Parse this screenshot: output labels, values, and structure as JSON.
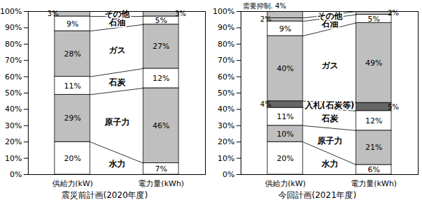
{
  "chart_data": [
    {
      "type": "bar",
      "title": "震災前計画(2020年度)",
      "stacked": true,
      "data_labels": true,
      "categories": [
        "供給力(kW)",
        "電力量(kWh)"
      ],
      "ylim": [
        0,
        100
      ],
      "yticks": [
        {
          "value": 0,
          "label": "0%"
        },
        {
          "value": 10,
          "label": "10%"
        },
        {
          "value": 20,
          "label": "20%"
        },
        {
          "value": 30,
          "label": "30%"
        },
        {
          "value": 40,
          "label": "40%"
        },
        {
          "value": 50,
          "label": "50%"
        },
        {
          "value": 60,
          "label": "60%"
        },
        {
          "value": 70,
          "label": "70%"
        },
        {
          "value": 80,
          "label": "80%"
        },
        {
          "value": 90,
          "label": "90%"
        },
        {
          "value": 100,
          "label": "100%"
        }
      ],
      "series": [
        {
          "name": "水力",
          "color": "#ffffff",
          "values": [
            20,
            7
          ],
          "value_labels": [
            "20%",
            "7%"
          ]
        },
        {
          "name": "原子力",
          "color": "#bfbfbf",
          "values": [
            29,
            46
          ],
          "value_labels": [
            "29%",
            "46%"
          ]
        },
        {
          "name": "石炭",
          "color": "#ffffff",
          "values": [
            11,
            12
          ],
          "value_labels": [
            "11%",
            "12%"
          ]
        },
        {
          "name": "ガス",
          "color": "#bfbfbf",
          "values": [
            28,
            27
          ],
          "value_labels": [
            "28%",
            "27%"
          ]
        },
        {
          "name": "石油",
          "color": "#ffffff",
          "values": [
            9,
            5
          ],
          "value_labels": [
            "9%",
            "5%"
          ]
        },
        {
          "name": "その他",
          "color": "#bfbfbf",
          "values": [
            3,
            3
          ],
          "value_labels": [
            "3%",
            "3%"
          ]
        }
      ]
    },
    {
      "type": "bar",
      "title": "今回計画(2021年度)",
      "stacked": true,
      "data_labels": true,
      "categories": [
        "供給力(kW)",
        "電力量(kWh)"
      ],
      "ylim": [
        0,
        100
      ],
      "yticks": [
        {
          "value": 0,
          "label": "0%"
        },
        {
          "value": 10,
          "label": "10%"
        },
        {
          "value": 20,
          "label": "20%"
        },
        {
          "value": 30,
          "label": "30%"
        },
        {
          "value": 40,
          "label": "40%"
        },
        {
          "value": 50,
          "label": "50%"
        },
        {
          "value": 60,
          "label": "60%"
        },
        {
          "value": 70,
          "label": "70%"
        },
        {
          "value": 80,
          "label": "80%"
        },
        {
          "value": 90,
          "label": "90%"
        },
        {
          "value": 100,
          "label": "100%"
        }
      ],
      "series": [
        {
          "name": "水力",
          "color": "#ffffff",
          "values": [
            20,
            6
          ],
          "value_labels": [
            "20%",
            "6%"
          ]
        },
        {
          "name": "原子力",
          "color": "#bfbfbf",
          "values": [
            10,
            21
          ],
          "value_labels": [
            "10%",
            "21%"
          ]
        },
        {
          "name": "石炭",
          "color": "#ffffff",
          "values": [
            11,
            12
          ],
          "value_labels": [
            "11%",
            "12%"
          ]
        },
        {
          "name": "入札(石炭等)",
          "color": "#666666",
          "values": [
            4,
            5
          ],
          "value_labels": [
            "4%",
            "5%"
          ]
        },
        {
          "name": "ガス",
          "color": "#bfbfbf",
          "values": [
            40,
            49
          ],
          "value_labels": [
            "40%",
            "49%"
          ]
        },
        {
          "name": "石油",
          "color": "#ffffff",
          "values": [
            9,
            5
          ],
          "value_labels": [
            "9%",
            "5%"
          ]
        },
        {
          "name": "その他",
          "color": "#bfbfbf",
          "values": [
            2,
            2
          ],
          "value_labels": [
            "2%",
            "2%"
          ]
        },
        {
          "name": "需要抑制.",
          "color": "#bfbfbf",
          "values": [
            4,
            0
          ],
          "value_labels": [
            "4%",
            null
          ]
        }
      ]
    }
  ]
}
